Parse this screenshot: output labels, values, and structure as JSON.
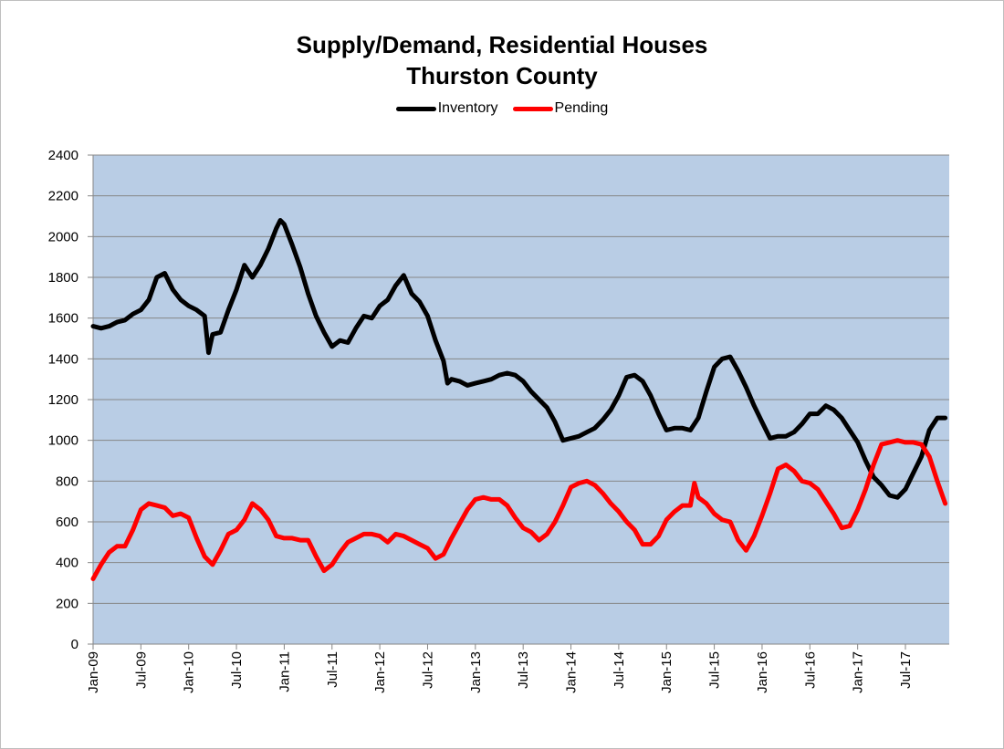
{
  "chart_data": {
    "type": "line",
    "title": "Supply/Demand, Residential Houses",
    "subtitle": "Thurston County",
    "xlabel": "",
    "ylabel": "",
    "ylim": [
      0,
      2400
    ],
    "yticks": [
      0,
      200,
      400,
      600,
      800,
      1000,
      1200,
      1400,
      1600,
      1800,
      2000,
      2200,
      2400
    ],
    "xticks": [
      "Jan-09",
      "Jul-09",
      "Jan-10",
      "Jul-10",
      "Jan-11",
      "Jul-11",
      "Jan-12",
      "Jul-12",
      "Jan-13",
      "Jul-13",
      "Jan-14",
      "Jul-14",
      "Jan-15",
      "Jul-15",
      "Jan-16",
      "Jul-16",
      "Jan-17",
      "Jul-17"
    ],
    "x_unit": "months since Jan-09",
    "x_range": [
      0,
      107.5
    ],
    "grid": true,
    "legend": "top-center",
    "plot_background": "#b9cde5",
    "series": [
      {
        "name": "Inventory",
        "color": "#000000",
        "points": [
          [
            0,
            1560
          ],
          [
            1,
            1550
          ],
          [
            2,
            1560
          ],
          [
            3,
            1580
          ],
          [
            4,
            1590
          ],
          [
            5,
            1620
          ],
          [
            6,
            1640
          ],
          [
            7,
            1690
          ],
          [
            8,
            1800
          ],
          [
            9,
            1820
          ],
          [
            10,
            1740
          ],
          [
            11,
            1690
          ],
          [
            12,
            1660
          ],
          [
            13,
            1640
          ],
          [
            14,
            1610
          ],
          [
            14.5,
            1430
          ],
          [
            15,
            1520
          ],
          [
            16,
            1530
          ],
          [
            17,
            1640
          ],
          [
            18,
            1740
          ],
          [
            19,
            1860
          ],
          [
            20,
            1800
          ],
          [
            21,
            1860
          ],
          [
            22,
            1940
          ],
          [
            23,
            2040
          ],
          [
            23.5,
            2080
          ],
          [
            24,
            2060
          ],
          [
            25,
            1960
          ],
          [
            26,
            1850
          ],
          [
            27,
            1720
          ],
          [
            28,
            1610
          ],
          [
            29,
            1530
          ],
          [
            30,
            1460
          ],
          [
            31,
            1490
          ],
          [
            32,
            1480
          ],
          [
            33,
            1550
          ],
          [
            34,
            1610
          ],
          [
            35,
            1600
          ],
          [
            36,
            1660
          ],
          [
            37,
            1690
          ],
          [
            38,
            1760
          ],
          [
            39,
            1810
          ],
          [
            40,
            1720
          ],
          [
            41,
            1680
          ],
          [
            42,
            1610
          ],
          [
            43,
            1490
          ],
          [
            44,
            1390
          ],
          [
            44.5,
            1280
          ],
          [
            45,
            1300
          ],
          [
            46,
            1290
          ],
          [
            47,
            1270
          ],
          [
            48,
            1280
          ],
          [
            49,
            1290
          ],
          [
            50,
            1300
          ],
          [
            51,
            1320
          ],
          [
            52,
            1330
          ],
          [
            53,
            1320
          ],
          [
            54,
            1290
          ],
          [
            55,
            1240
          ],
          [
            56,
            1200
          ],
          [
            57,
            1160
          ],
          [
            58,
            1090
          ],
          [
            59,
            1000
          ],
          [
            60,
            1010
          ],
          [
            61,
            1020
          ],
          [
            62,
            1040
          ],
          [
            63,
            1060
          ],
          [
            64,
            1100
          ],
          [
            65,
            1150
          ],
          [
            66,
            1220
          ],
          [
            67,
            1310
          ],
          [
            68,
            1320
          ],
          [
            69,
            1290
          ],
          [
            70,
            1220
          ],
          [
            71,
            1130
          ],
          [
            72,
            1050
          ],
          [
            73,
            1060
          ],
          [
            74,
            1060
          ],
          [
            75,
            1050
          ],
          [
            76,
            1110
          ],
          [
            77,
            1240
          ],
          [
            78,
            1360
          ],
          [
            79,
            1400
          ],
          [
            80,
            1410
          ],
          [
            81,
            1340
          ],
          [
            82,
            1260
          ],
          [
            83,
            1170
          ],
          [
            84,
            1090
          ],
          [
            85,
            1010
          ],
          [
            86,
            1020
          ],
          [
            87,
            1020
          ],
          [
            88,
            1040
          ],
          [
            89,
            1080
          ],
          [
            90,
            1130
          ],
          [
            91,
            1130
          ],
          [
            92,
            1170
          ],
          [
            93,
            1150
          ],
          [
            94,
            1110
          ],
          [
            95,
            1050
          ],
          [
            96,
            990
          ],
          [
            97,
            900
          ],
          [
            98,
            820
          ],
          [
            99,
            780
          ],
          [
            100,
            730
          ],
          [
            101,
            720
          ],
          [
            102,
            760
          ],
          [
            103,
            840
          ],
          [
            104,
            920
          ],
          [
            105,
            1050
          ],
          [
            106,
            1110
          ],
          [
            107,
            1110
          ]
        ]
      },
      {
        "name": "Pending",
        "color": "#ff0000",
        "points": [
          [
            0,
            320
          ],
          [
            1,
            390
          ],
          [
            2,
            450
          ],
          [
            3,
            480
          ],
          [
            4,
            480
          ],
          [
            5,
            560
          ],
          [
            6,
            660
          ],
          [
            7,
            690
          ],
          [
            8,
            680
          ],
          [
            9,
            670
          ],
          [
            10,
            630
          ],
          [
            11,
            640
          ],
          [
            12,
            620
          ],
          [
            13,
            520
          ],
          [
            14,
            430
          ],
          [
            15,
            390
          ],
          [
            16,
            460
          ],
          [
            17,
            540
          ],
          [
            18,
            560
          ],
          [
            19,
            610
          ],
          [
            20,
            690
          ],
          [
            21,
            660
          ],
          [
            22,
            610
          ],
          [
            23,
            530
          ],
          [
            24,
            520
          ],
          [
            25,
            520
          ],
          [
            26,
            510
          ],
          [
            27,
            510
          ],
          [
            28,
            430
          ],
          [
            29,
            360
          ],
          [
            30,
            390
          ],
          [
            31,
            450
          ],
          [
            32,
            500
          ],
          [
            33,
            520
          ],
          [
            34,
            540
          ],
          [
            35,
            540
          ],
          [
            36,
            530
          ],
          [
            37,
            500
          ],
          [
            38,
            540
          ],
          [
            39,
            530
          ],
          [
            40,
            510
          ],
          [
            41,
            490
          ],
          [
            42,
            470
          ],
          [
            43,
            420
          ],
          [
            44,
            440
          ],
          [
            45,
            520
          ],
          [
            46,
            590
          ],
          [
            47,
            660
          ],
          [
            48,
            710
          ],
          [
            49,
            720
          ],
          [
            50,
            710
          ],
          [
            51,
            710
          ],
          [
            52,
            680
          ],
          [
            53,
            620
          ],
          [
            54,
            570
          ],
          [
            55,
            550
          ],
          [
            56,
            510
          ],
          [
            57,
            540
          ],
          [
            58,
            600
          ],
          [
            59,
            680
          ],
          [
            60,
            770
          ],
          [
            61,
            790
          ],
          [
            62,
            800
          ],
          [
            63,
            780
          ],
          [
            64,
            740
          ],
          [
            65,
            690
          ],
          [
            66,
            650
          ],
          [
            67,
            600
          ],
          [
            68,
            560
          ],
          [
            69,
            490
          ],
          [
            70,
            490
          ],
          [
            71,
            530
          ],
          [
            72,
            610
          ],
          [
            73,
            650
          ],
          [
            74,
            680
          ],
          [
            75,
            680
          ],
          [
            75.5,
            790
          ],
          [
            76,
            720
          ],
          [
            77,
            690
          ],
          [
            78,
            640
          ],
          [
            79,
            610
          ],
          [
            80,
            600
          ],
          [
            81,
            510
          ],
          [
            82,
            460
          ],
          [
            83,
            530
          ],
          [
            84,
            630
          ],
          [
            85,
            740
          ],
          [
            86,
            860
          ],
          [
            87,
            880
          ],
          [
            88,
            850
          ],
          [
            89,
            800
          ],
          [
            90,
            790
          ],
          [
            91,
            760
          ],
          [
            92,
            700
          ],
          [
            93,
            640
          ],
          [
            94,
            570
          ],
          [
            95,
            580
          ],
          [
            96,
            660
          ],
          [
            97,
            760
          ],
          [
            98,
            880
          ],
          [
            99,
            980
          ],
          [
            100,
            990
          ],
          [
            101,
            1000
          ],
          [
            102,
            990
          ],
          [
            103,
            990
          ],
          [
            104,
            980
          ],
          [
            105,
            920
          ],
          [
            106,
            800
          ],
          [
            107,
            690
          ]
        ]
      }
    ]
  }
}
